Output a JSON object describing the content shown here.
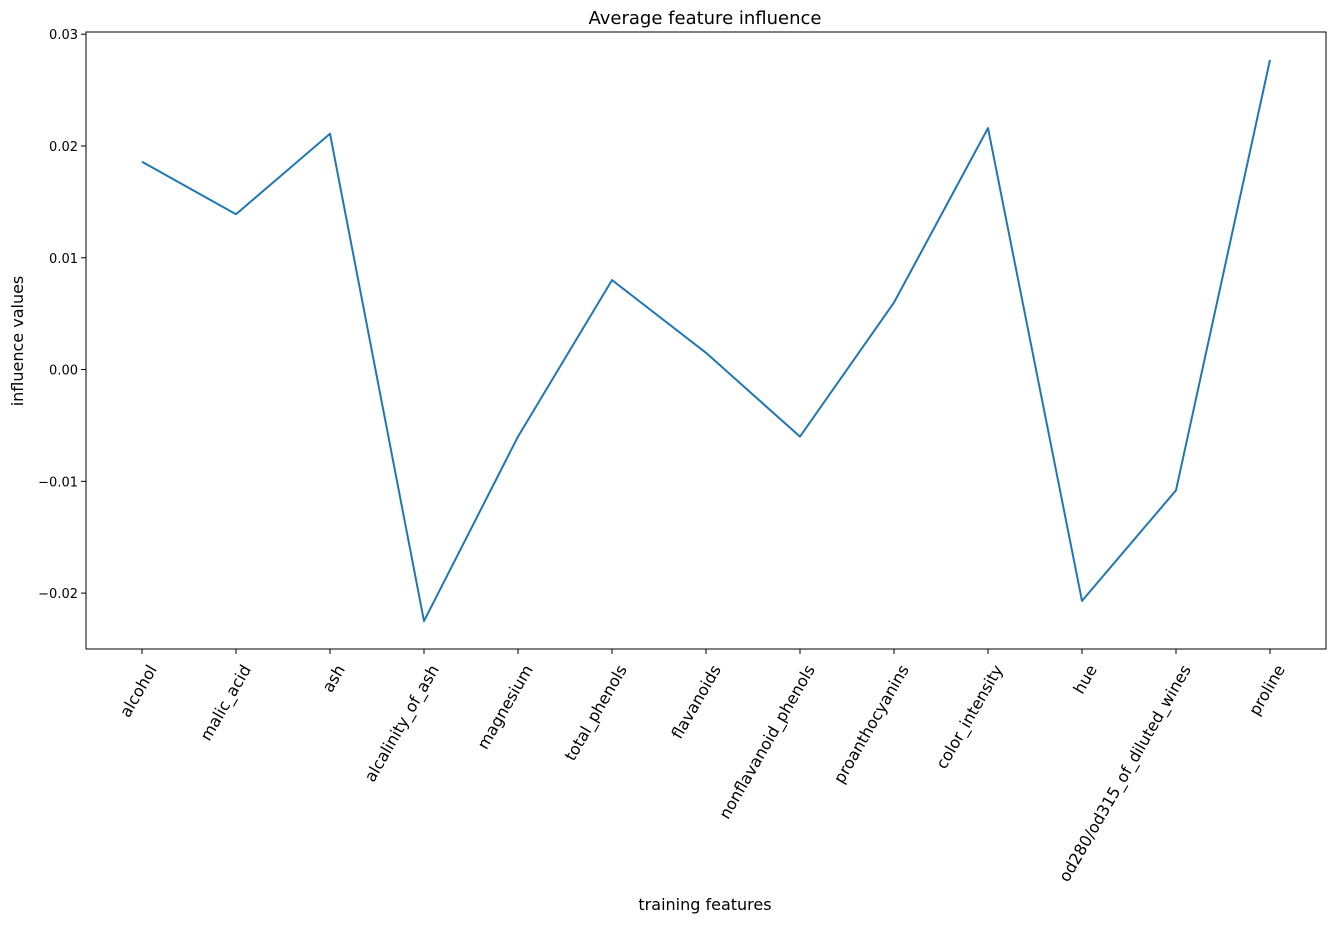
{
  "chart_data": {
    "type": "line",
    "title": "Average feature influence",
    "xlabel": "training features",
    "ylabel": "influence values",
    "categories": [
      "alcohol",
      "malic_acid",
      "ash",
      "alcalinity_of_ash",
      "magnesium",
      "total_phenols",
      "flavanoids",
      "nonflavanoid_phenols",
      "proanthocyanins",
      "color_intensity",
      "hue",
      "od280/od315_of_diluted_wines",
      "proline"
    ],
    "series": [
      {
        "values": [
          0.0186,
          0.0139,
          0.0211,
          -0.0225,
          -0.006,
          0.008,
          0.0015,
          -0.006,
          0.006,
          0.0216,
          -0.0207,
          -0.0108,
          0.0277
        ]
      }
    ],
    "yticks": [
      -0.02,
      -0.01,
      0.0,
      0.01,
      0.02,
      0.03
    ],
    "ytick_labels": [
      "−0.02",
      "−0.01",
      "0.00",
      "0.01",
      "0.02",
      "0.03"
    ],
    "ylim": [
      -0.025,
      0.0302
    ],
    "grid": false,
    "line_color": "#1f77b4"
  }
}
